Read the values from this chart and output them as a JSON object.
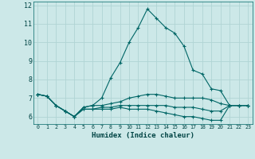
{
  "xlabel": "Humidex (Indice chaleur)",
  "background_color": "#cce8e8",
  "grid_color": "#b0d4d4",
  "line_color": "#006666",
  "x_values": [
    0,
    1,
    2,
    3,
    4,
    5,
    6,
    7,
    8,
    9,
    10,
    11,
    12,
    13,
    14,
    15,
    16,
    17,
    18,
    19,
    20,
    21,
    22,
    23
  ],
  "series": [
    [
      7.2,
      7.1,
      6.6,
      6.3,
      6.0,
      6.5,
      6.6,
      7.0,
      8.1,
      8.9,
      10.0,
      10.8,
      11.8,
      11.3,
      10.8,
      10.5,
      9.8,
      8.5,
      8.3,
      7.5,
      7.4,
      6.6,
      6.6,
      6.6
    ],
    [
      7.2,
      7.1,
      6.6,
      6.3,
      6.0,
      6.5,
      6.6,
      6.6,
      6.7,
      6.8,
      7.0,
      7.1,
      7.2,
      7.2,
      7.1,
      7.0,
      7.0,
      7.0,
      7.0,
      6.9,
      6.7,
      6.6,
      6.6,
      6.6
    ],
    [
      7.2,
      7.1,
      6.6,
      6.3,
      6.0,
      6.4,
      6.4,
      6.4,
      6.4,
      6.5,
      6.4,
      6.4,
      6.4,
      6.3,
      6.2,
      6.1,
      6.0,
      6.0,
      5.9,
      5.8,
      5.8,
      6.6,
      6.6,
      6.6
    ],
    [
      7.2,
      7.1,
      6.6,
      6.3,
      6.0,
      6.4,
      6.4,
      6.5,
      6.5,
      6.6,
      6.6,
      6.6,
      6.6,
      6.6,
      6.6,
      6.5,
      6.5,
      6.5,
      6.4,
      6.3,
      6.3,
      6.6,
      6.6,
      6.6
    ]
  ],
  "ylim": [
    5.6,
    12.2
  ],
  "yticks": [
    6,
    7,
    8,
    9,
    10,
    11,
    12
  ],
  "xlim": [
    -0.5,
    23.5
  ],
  "xticks": [
    0,
    1,
    2,
    3,
    4,
    5,
    6,
    7,
    8,
    9,
    10,
    11,
    12,
    13,
    14,
    15,
    16,
    17,
    18,
    19,
    20,
    21,
    22,
    23
  ],
  "xtick_labels": [
    "0",
    "1",
    "2",
    "3",
    "4",
    "5",
    "6",
    "7",
    "8",
    "9",
    "10",
    "11",
    "12",
    "13",
    "14",
    "15",
    "16",
    "17",
    "18",
    "19",
    "20",
    "21",
    "22",
    "23"
  ]
}
